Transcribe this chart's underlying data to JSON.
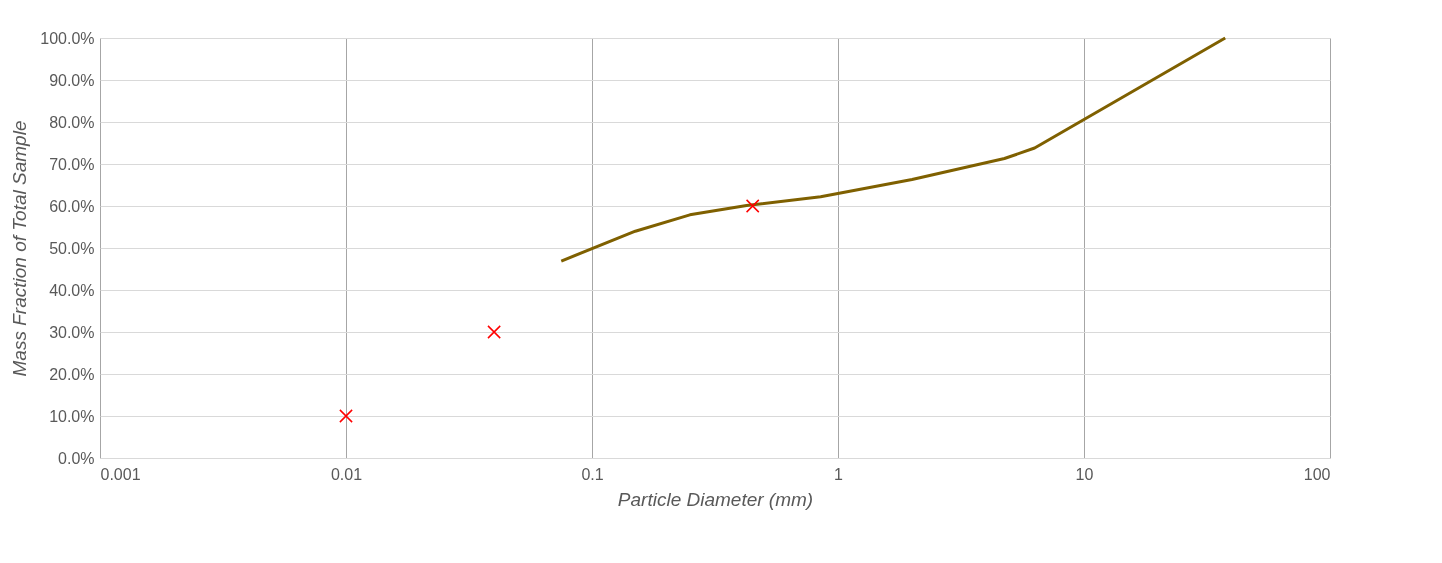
{
  "chart_data": {
    "type": "line",
    "xlabel": "Particle Diameter (mm)",
    "ylabel": "Mass Fraction of Total Sample",
    "log": "x",
    "grid": true,
    "xlim": [
      0.001,
      100
    ],
    "xticks": [
      0.001,
      0.01,
      0.1,
      1,
      10,
      100
    ],
    "ylim": [
      0,
      100
    ],
    "yticks": [
      {
        "value": 0,
        "label": "0.0%"
      },
      {
        "value": 10,
        "label": "10.0%"
      },
      {
        "value": 20,
        "label": "20.0%"
      },
      {
        "value": 30,
        "label": "30.0%"
      },
      {
        "value": 40,
        "label": "40.0%"
      },
      {
        "value": 50,
        "label": "50.0%"
      },
      {
        "value": 60,
        "label": "60.0%"
      },
      {
        "value": 70,
        "label": "70.0%"
      },
      {
        "value": 80,
        "label": "80.0%"
      },
      {
        "value": 90,
        "label": "90.0%"
      },
      {
        "value": 100,
        "label": "100.0%"
      }
    ],
    "series": [
      {
        "color": "#7f6000",
        "marker": "none",
        "line_style": "solid",
        "x": [
          0.075,
          0.15,
          0.25,
          0.425,
          0.85,
          2,
          4.75,
          6.3,
          37.5
        ],
        "values": [
          46.9,
          54.0,
          57.9,
          60.1,
          62.2,
          66.3,
          71.3,
          73.8,
          100
        ]
      },
      {
        "type": "scatter",
        "color": "#ff0000",
        "marker": "cross",
        "x": [
          0.01,
          0.04,
          0.45
        ],
        "values": [
          10,
          30,
          60
        ]
      }
    ]
  }
}
